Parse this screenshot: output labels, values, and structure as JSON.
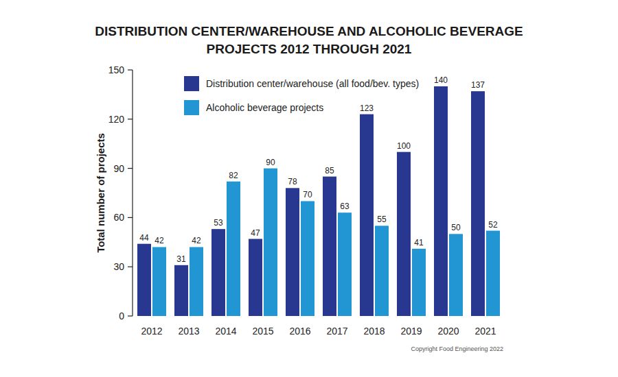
{
  "chart_data": {
    "type": "bar",
    "title": "DISTRIBUTION CENTER/WAREHOUSE AND ALCOHOLIC BEVERAGE PROJECTS 2012 THROUGH 2021",
    "y_label": "Total number of projects",
    "categories": [
      "2012",
      "2013",
      "2014",
      "2015",
      "2016",
      "2017",
      "2018",
      "2019",
      "2020",
      "2021"
    ],
    "series": [
      {
        "name": "Distribution center/warehouse (all food/bev. types)",
        "color": "#283891",
        "values": [
          44,
          31,
          53,
          47,
          78,
          85,
          123,
          100,
          140,
          137
        ]
      },
      {
        "name": "Alcoholic beverage projects",
        "color": "#2196d3",
        "values": [
          42,
          42,
          82,
          90,
          70,
          63,
          55,
          41,
          50,
          52
        ]
      }
    ],
    "ylim": [
      0,
      150
    ],
    "yticks": [
      0,
      30,
      60,
      90,
      120,
      150
    ],
    "grid": false,
    "legend": "top-left",
    "data_labels": true,
    "annotations": [
      "Copyright Food Engineering 2022"
    ]
  }
}
